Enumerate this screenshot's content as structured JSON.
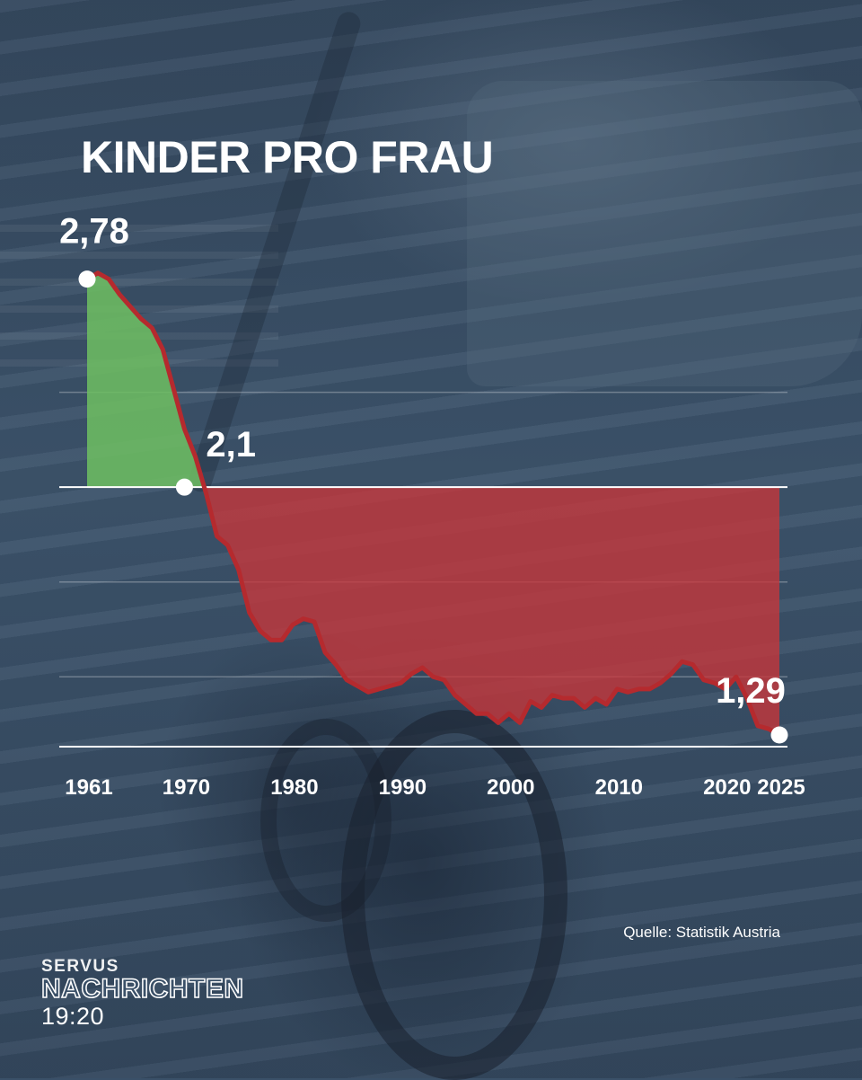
{
  "header": {
    "title": "KINDER PRO FRAU"
  },
  "footer": {
    "source": "Quelle: Statistik Austria",
    "logo": {
      "line1": "SERVUS",
      "line2": "NACHRICHTEN",
      "line3": "19:20"
    }
  },
  "colors": {
    "above": "#6fbf62",
    "below": "#c8363a",
    "line": "#b52a2e",
    "grid": "#ffffff"
  },
  "chart_data": {
    "type": "area",
    "title": "KINDER PRO FRAU",
    "xlabel": "",
    "ylabel": "",
    "baseline": 2.1,
    "xlim": [
      1961,
      2025
    ],
    "ylim": [
      1.29,
      2.82
    ],
    "x_ticks": [
      {
        "value": 1961,
        "label": "1961"
      },
      {
        "value": 1970,
        "label": "1970"
      },
      {
        "value": 1980,
        "label": "1980"
      },
      {
        "value": 1990,
        "label": "1990"
      },
      {
        "value": 2000,
        "label": "2000"
      },
      {
        "value": 2010,
        "label": "2010"
      },
      {
        "value": 2020,
        "label": "2020"
      },
      {
        "value": 2025,
        "label": "2025"
      }
    ],
    "gridlines": [
      1.29,
      1.48,
      1.79,
      2.1,
      2.41
    ],
    "x": [
      1961,
      1962,
      1963,
      1964,
      1965,
      1966,
      1967,
      1968,
      1969,
      1970,
      1971,
      1972,
      1973,
      1974,
      1975,
      1976,
      1977,
      1978,
      1979,
      1980,
      1981,
      1982,
      1983,
      1984,
      1985,
      1986,
      1987,
      1988,
      1989,
      1990,
      1991,
      1992,
      1993,
      1994,
      1995,
      1996,
      1997,
      1998,
      1999,
      2000,
      2001,
      2002,
      2003,
      2004,
      2005,
      2006,
      2007,
      2008,
      2009,
      2010,
      2011,
      2012,
      2013,
      2014,
      2015,
      2016,
      2017,
      2018,
      2019,
      2020,
      2021,
      2022,
      2023,
      2024,
      2025
    ],
    "y": [
      2.78,
      2.8,
      2.78,
      2.73,
      2.69,
      2.65,
      2.62,
      2.55,
      2.42,
      2.29,
      2.2,
      2.08,
      1.94,
      1.91,
      1.83,
      1.69,
      1.63,
      1.6,
      1.6,
      1.65,
      1.67,
      1.66,
      1.56,
      1.52,
      1.47,
      1.45,
      1.43,
      1.44,
      1.45,
      1.46,
      1.49,
      1.51,
      1.48,
      1.47,
      1.42,
      1.39,
      1.36,
      1.36,
      1.33,
      1.36,
      1.33,
      1.4,
      1.38,
      1.42,
      1.41,
      1.41,
      1.38,
      1.41,
      1.39,
      1.44,
      1.43,
      1.44,
      1.44,
      1.46,
      1.49,
      1.53,
      1.52,
      1.47,
      1.46,
      1.44,
      1.48,
      1.41,
      1.32,
      1.31,
      1.29
    ],
    "annotations": [
      {
        "x": 1961,
        "y": 2.78,
        "label": "2,78"
      },
      {
        "x": 1970,
        "y": 2.1,
        "label": "2,1"
      },
      {
        "x": 2025,
        "y": 1.29,
        "label": "1,29"
      }
    ]
  }
}
